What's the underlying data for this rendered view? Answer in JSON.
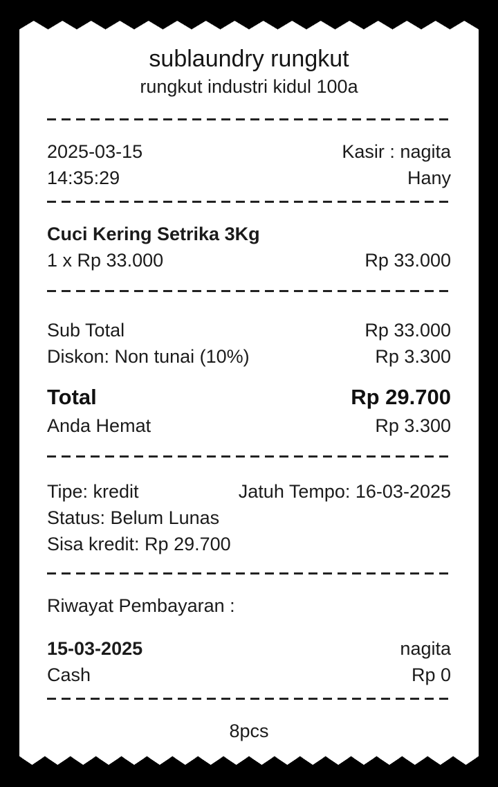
{
  "receipt": {
    "store": {
      "name": "sublaundry rungkut",
      "address": "rungkut industri kidul 100a"
    },
    "meta": {
      "date": "2025-03-15",
      "time": "14:35:29",
      "cashier": "Kasir : nagita",
      "customer": "Hany"
    },
    "items": [
      {
        "name": "Cuci Kering Setrika 3Kg",
        "qty_price": "1 x Rp 33.000",
        "amount": "Rp 33.000"
      }
    ],
    "summary": {
      "subtotal_label": "Sub Total",
      "subtotal_value": "Rp 33.000",
      "discount_label": "Diskon: Non tunai (10%)",
      "discount_value": "Rp 3.300",
      "total_label": "Total",
      "total_value": "Rp 29.700",
      "savings_label": "Anda Hemat",
      "savings_value": "Rp 3.300"
    },
    "credit": {
      "type": "Tipe: kredit",
      "due": "Jatuh Tempo: 16-03-2025",
      "status": "Status: Belum Lunas",
      "remaining": "Sisa kredit: Rp 29.700"
    },
    "payment_history": {
      "title": "Riwayat Pembayaran :",
      "entries": [
        {
          "date": "15-03-2025",
          "by": "nagita",
          "method": "Cash",
          "amount": "Rp 0"
        }
      ]
    },
    "footer": {
      "pieces": "8pcs"
    },
    "colors": {
      "background": "#000000",
      "paper": "#ffffff",
      "ink": "#1b1b1b"
    }
  }
}
